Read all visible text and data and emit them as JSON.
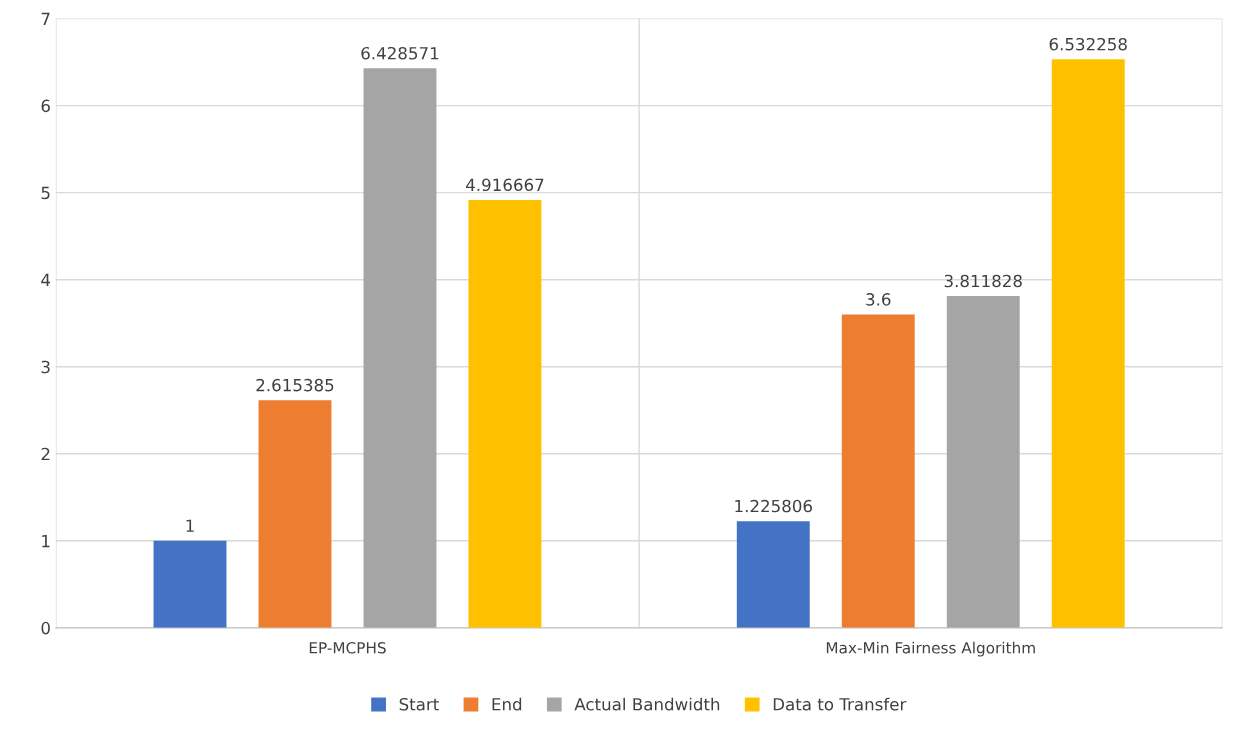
{
  "chart_data": {
    "type": "bar",
    "categories": [
      "EP-MCPHS",
      "Max-Min Fairness Algorithm"
    ],
    "series": [
      {
        "name": "Start",
        "color": "#4472c4",
        "values": [
          1,
          1.225806
        ]
      },
      {
        "name": "End",
        "color": "#ed7d31",
        "values": [
          2.615385,
          3.6
        ]
      },
      {
        "name": "Actual Bandwidth",
        "color": "#a5a5a5",
        "values": [
          6.428571,
          3.811828
        ]
      },
      {
        "name": "Data to Transfer",
        "color": "#ffc000",
        "values": [
          4.916667,
          6.532258
        ]
      }
    ],
    "ylim": [
      0,
      7
    ],
    "yticks": [
      0,
      1,
      2,
      3,
      4,
      5,
      6,
      7
    ],
    "grid": true,
    "legend": "bottom",
    "data_labels": true
  }
}
